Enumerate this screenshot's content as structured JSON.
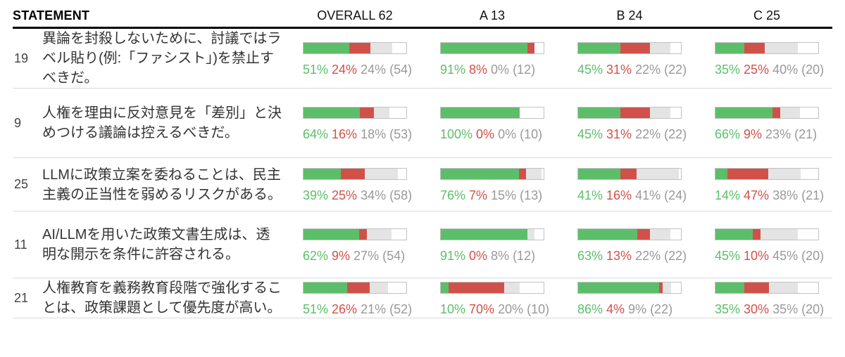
{
  "header": {
    "statement_label": "STATEMENT",
    "groups": [
      {
        "label": "OVERALL 62",
        "name": "OVERALL",
        "total": 62
      },
      {
        "label": "A 13",
        "name": "A",
        "total": 13
      },
      {
        "label": "B 24",
        "name": "B",
        "total": 24
      },
      {
        "label": "C 25",
        "name": "C",
        "total": 25
      }
    ]
  },
  "statements": [
    {
      "id": "19",
      "text": "異論を封殺しないために、討議ではラベル貼り(例:「ファシスト」)を禁止すべきだ。"
    },
    {
      "id": "9",
      "text": "人権を理由に反対意見を「差別」と決めつける議論は控えるべきだ。"
    },
    {
      "id": "25",
      "text": "LLMに政策立案を委ねることは、民主主義の正当性を弱めるリスクがある。"
    },
    {
      "id": "11",
      "text": "AI/LLMを用いた政策文書生成は、透明な開示を条件に許容される。"
    },
    {
      "id": "21",
      "text": "人権教育を義務教育段階で強化することは、政策課題として優先度が高い。"
    }
  ],
  "colors": {
    "agree": "#5dbe6a",
    "disagree": "#d0514a",
    "pass_bar": "#e4e4e4",
    "pass_text": "#999999",
    "count_text": "#999999",
    "bar_border": "#c2c2c2",
    "separator": "#d9d9d9",
    "header_rule": "#000000",
    "statement_text": "#333333",
    "number_text": "#444444"
  },
  "chart_data": {
    "type": "bar",
    "variant": "horizontal-stacked-percent-small-multiples",
    "note": "Each cell: stacked bar of agree (green), disagree (red), pass (grey); white remainder = non-voters. Bar fill scaled by count/group_total. Labels: agree% disagree% pass% (count).",
    "groups": [
      "OVERALL",
      "A",
      "B",
      "C"
    ],
    "group_totals": [
      62,
      13,
      24,
      25
    ],
    "segment_colors": {
      "agree": "#5dbe6a",
      "disagree": "#d0514a",
      "pass": "#e4e4e4",
      "no_vote": "#ffffff"
    },
    "rows": [
      {
        "statement_id": "19",
        "statement": "異論を封殺しないために、討議ではラベル貼り(例:「ファシスト」)を禁止すべきだ。",
        "results": [
          {
            "agree_pct": 51,
            "disagree_pct": 24,
            "pass_pct": 24,
            "count": 54
          },
          {
            "agree_pct": 91,
            "disagree_pct": 8,
            "pass_pct": 0,
            "count": 12
          },
          {
            "agree_pct": 45,
            "disagree_pct": 31,
            "pass_pct": 22,
            "count": 22
          },
          {
            "agree_pct": 35,
            "disagree_pct": 25,
            "pass_pct": 40,
            "count": 20
          }
        ]
      },
      {
        "statement_id": "9",
        "statement": "人権を理由に反対意見を「差別」と決めつける議論は控えるべきだ。",
        "results": [
          {
            "agree_pct": 64,
            "disagree_pct": 16,
            "pass_pct": 18,
            "count": 53
          },
          {
            "agree_pct": 100,
            "disagree_pct": 0,
            "pass_pct": 0,
            "count": 10
          },
          {
            "agree_pct": 45,
            "disagree_pct": 31,
            "pass_pct": 22,
            "count": 22
          },
          {
            "agree_pct": 66,
            "disagree_pct": 9,
            "pass_pct": 23,
            "count": 21
          }
        ]
      },
      {
        "statement_id": "25",
        "statement": "LLMに政策立案を委ねることは、民主主義の正当性を弱めるリスクがある。",
        "results": [
          {
            "agree_pct": 39,
            "disagree_pct": 25,
            "pass_pct": 34,
            "count": 58
          },
          {
            "agree_pct": 76,
            "disagree_pct": 7,
            "pass_pct": 15,
            "count": 13
          },
          {
            "agree_pct": 41,
            "disagree_pct": 16,
            "pass_pct": 41,
            "count": 24
          },
          {
            "agree_pct": 14,
            "disagree_pct": 47,
            "pass_pct": 38,
            "count": 21
          }
        ]
      },
      {
        "statement_id": "11",
        "statement": "AI/LLMを用いた政策文書生成は、透明な開示を条件に許容される。",
        "results": [
          {
            "agree_pct": 62,
            "disagree_pct": 9,
            "pass_pct": 27,
            "count": 54
          },
          {
            "agree_pct": 91,
            "disagree_pct": 0,
            "pass_pct": 8,
            "count": 12
          },
          {
            "agree_pct": 63,
            "disagree_pct": 13,
            "pass_pct": 22,
            "count": 22
          },
          {
            "agree_pct": 45,
            "disagree_pct": 10,
            "pass_pct": 45,
            "count": 20
          }
        ]
      },
      {
        "statement_id": "21",
        "statement": "人権教育を義務教育段階で強化することは、政策課題として優先度が高い。",
        "results": [
          {
            "agree_pct": 51,
            "disagree_pct": 26,
            "pass_pct": 21,
            "count": 52
          },
          {
            "agree_pct": 10,
            "disagree_pct": 70,
            "pass_pct": 20,
            "count": 10
          },
          {
            "agree_pct": 86,
            "disagree_pct": 4,
            "pass_pct": 9,
            "count": 22
          },
          {
            "agree_pct": 35,
            "disagree_pct": 30,
            "pass_pct": 35,
            "count": 20
          }
        ]
      }
    ]
  }
}
